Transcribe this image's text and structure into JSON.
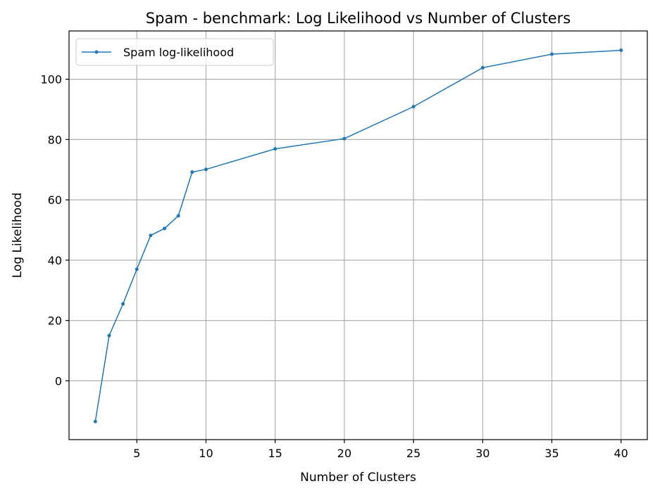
{
  "chart_data": {
    "type": "line",
    "title": "Spam - benchmark: Log Likelihood vs Number of Clusters",
    "xlabel": "Number of Clusters",
    "ylabel": "Log Likelihood",
    "xlim": [
      0.1,
      41.9
    ],
    "ylim": [
      -19.5,
      116
    ],
    "xticks": [
      5,
      10,
      15,
      20,
      25,
      30,
      35,
      40
    ],
    "yticks": [
      0,
      20,
      40,
      60,
      80,
      100
    ],
    "grid": true,
    "legend_position": "top-left",
    "series": [
      {
        "name": "Spam log-likelihood",
        "color": "#1f77b4",
        "marker": "circle",
        "x": [
          2,
          3,
          4,
          5,
          6,
          7,
          8,
          9,
          10,
          15,
          20,
          25,
          30,
          35,
          40
        ],
        "y": [
          -13.5,
          15,
          25.5,
          37,
          48.2,
          50.5,
          54.7,
          69.2,
          70.1,
          76.9,
          80.3,
          90.9,
          103.8,
          108.3,
          109.6
        ]
      }
    ]
  }
}
